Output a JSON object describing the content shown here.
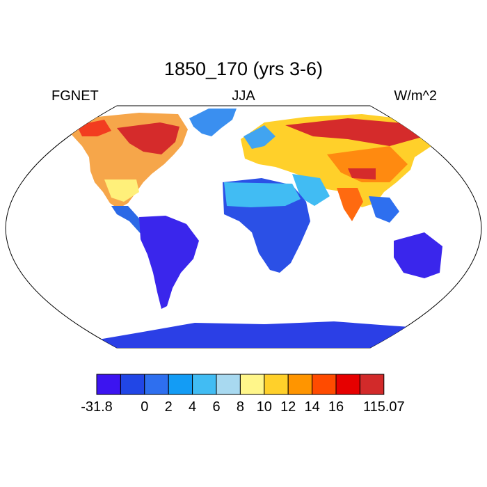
{
  "title": "1850_170 (yrs 3-6)",
  "left_label": "FGNET",
  "center_label": "JJA",
  "right_label": "W/m^2",
  "colorbar": {
    "colors": [
      "#3c14f0",
      "#2146e6",
      "#2e6fef",
      "#139cf5",
      "#41bcf3",
      "#a8d9f0",
      "#fff68a",
      "#ffd02a",
      "#ff9500",
      "#ff4b00",
      "#e60000",
      "#d22a2a"
    ],
    "labels": [
      "-31.8",
      "0",
      "2",
      "4",
      "6",
      "8",
      "10",
      "12",
      "14",
      "16",
      "115.07"
    ]
  }
}
